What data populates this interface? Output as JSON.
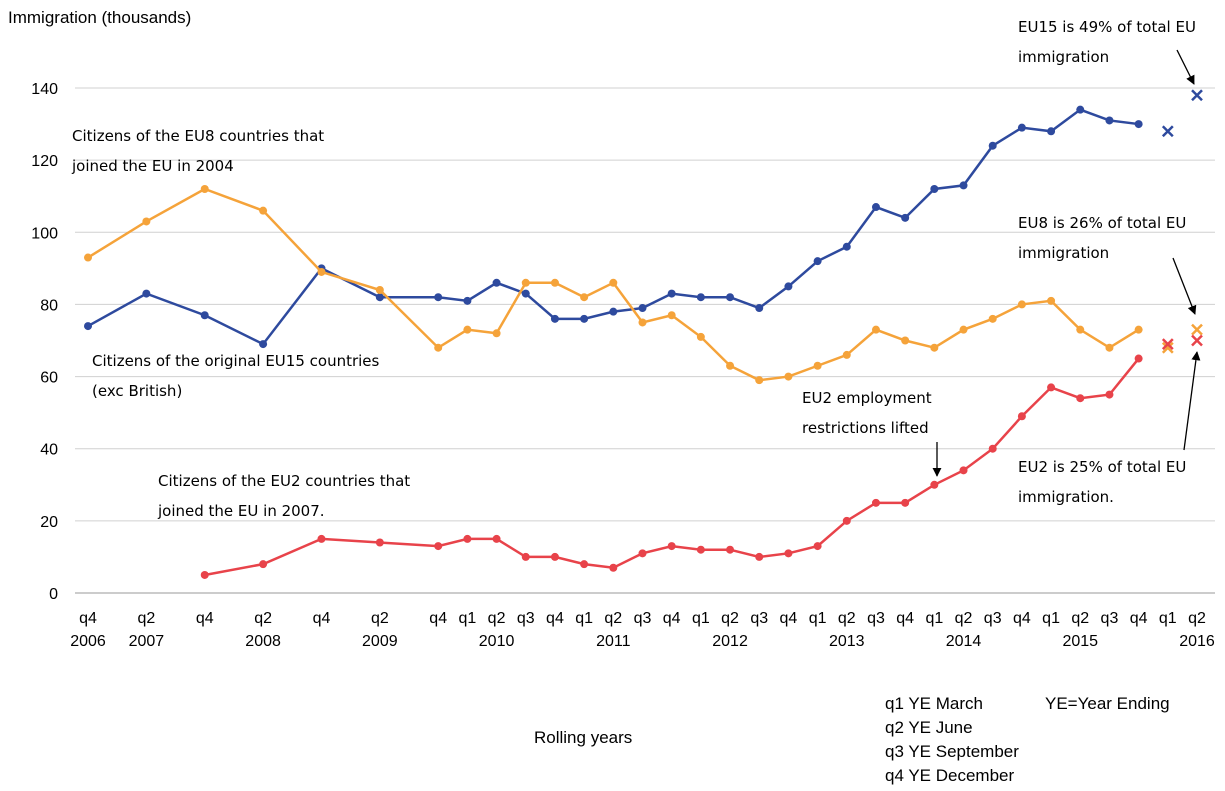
{
  "chart_data": {
    "type": "line",
    "y_label": "Immigration (thousands)",
    "x_label": "Rolling years",
    "categories": [
      "q4 2006",
      "q2 2007",
      "q4",
      "q2 2008",
      "q4",
      "q2 2009",
      "q4",
      "q1",
      "q2 2010",
      "q3",
      "q4",
      "q1",
      "q2 2011",
      "q3",
      "q4",
      "q1",
      "q2 2012",
      "q3",
      "q4",
      "q1",
      "q2 2013",
      "q3",
      "q4",
      "q1",
      "q2 2014",
      "q3",
      "q4",
      "q1",
      "q2 2015",
      "q3",
      "q4",
      "q1",
      "q2 2016"
    ],
    "ylim": [
      0,
      140
    ],
    "yticks": [
      0,
      20,
      40,
      60,
      80,
      100,
      120,
      140
    ],
    "grid": true,
    "series": [
      {
        "name": "Citizens of the original EU15 countries (exc British)",
        "color": "#2e4a9e",
        "values": [
          74,
          83,
          77,
          69,
          90,
          82,
          82,
          81,
          86,
          83,
          76,
          76,
          78,
          79,
          83,
          82,
          82,
          79,
          85,
          92,
          96,
          107,
          104,
          112,
          113,
          124,
          129,
          128,
          134,
          131,
          130,
          null,
          null
        ],
        "cross_values": [
          null,
          null,
          null,
          null,
          null,
          null,
          null,
          null,
          null,
          null,
          null,
          null,
          null,
          null,
          null,
          null,
          null,
          null,
          null,
          null,
          null,
          null,
          null,
          null,
          null,
          null,
          null,
          null,
          null,
          null,
          null,
          128,
          138
        ]
      },
      {
        "name": "Citizens of the EU8 countries that joined the EU in 2004",
        "color": "#f5a33a",
        "values": [
          93,
          103,
          112,
          106,
          89,
          84,
          68,
          73,
          72,
          86,
          86,
          82,
          86,
          75,
          77,
          71,
          63,
          59,
          60,
          63,
          66,
          73,
          70,
          68,
          73,
          76,
          80,
          81,
          73,
          68,
          73,
          null,
          null
        ],
        "cross_values": [
          null,
          null,
          null,
          null,
          null,
          null,
          null,
          null,
          null,
          null,
          null,
          null,
          null,
          null,
          null,
          null,
          null,
          null,
          null,
          null,
          null,
          null,
          null,
          null,
          null,
          null,
          null,
          null,
          null,
          null,
          null,
          68,
          73
        ]
      },
      {
        "name": "Citizens of the EU2 countries that joined the EU in 2007.",
        "color": "#e8434a",
        "values": [
          null,
          null,
          5,
          8,
          15,
          14,
          13,
          15,
          15,
          10,
          10,
          8,
          7,
          11,
          13,
          12,
          12,
          10,
          11,
          13,
          20,
          25,
          25,
          30,
          34,
          40,
          49,
          57,
          54,
          55,
          65,
          null,
          null
        ],
        "cross_values": [
          null,
          null,
          null,
          null,
          null,
          null,
          null,
          null,
          null,
          null,
          null,
          null,
          null,
          null,
          null,
          null,
          null,
          null,
          null,
          null,
          null,
          null,
          null,
          null,
          null,
          null,
          null,
          null,
          null,
          null,
          null,
          69,
          70
        ]
      }
    ],
    "annotations": [
      "EU15 is 49% of total EU immigration",
      "EU8 is 26% of total EU immigration",
      "EU2 is 25% of total EU immigration.",
      "EU2 employment restrictions lifted"
    ],
    "footnotes": [
      "q1 YE March",
      "YE=Year Ending",
      "q2 YE June",
      "q3 YE September",
      "q4 YE December"
    ]
  }
}
